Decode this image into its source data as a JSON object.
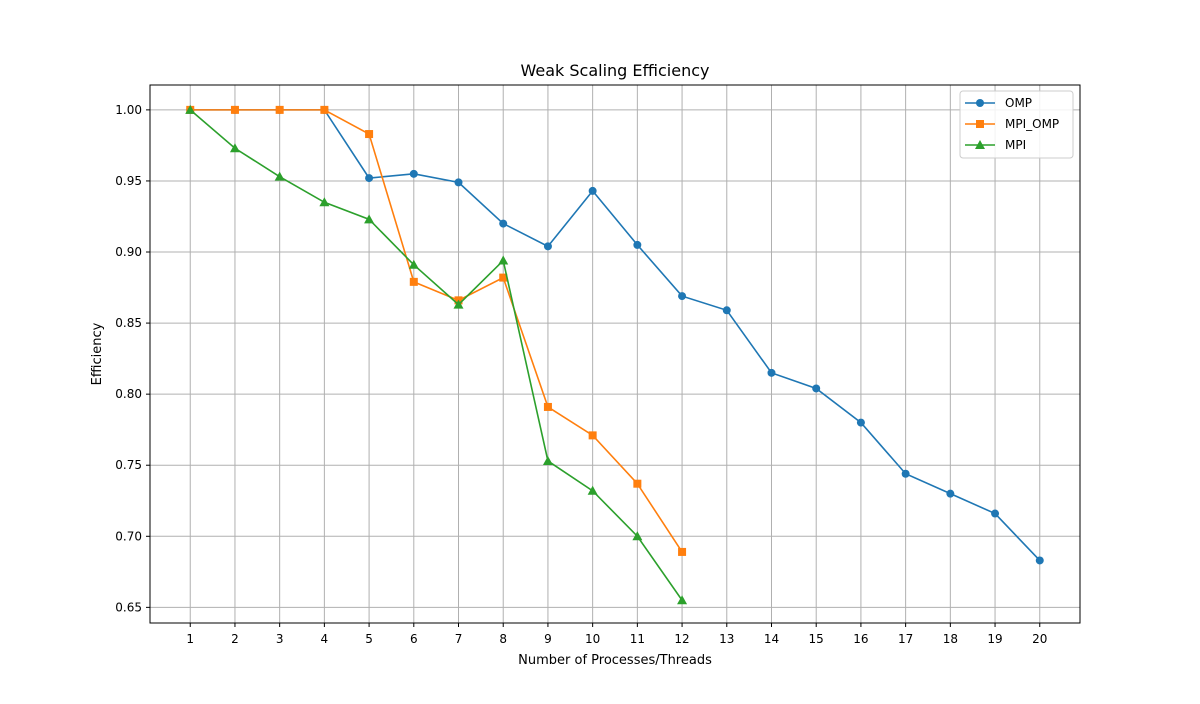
{
  "chart_data": {
    "type": "line",
    "title": "Weak Scaling Efficiency",
    "xlabel": "Number of Processes/Threads",
    "ylabel": "Efficiency",
    "xlim": [
      0.1,
      20.9
    ],
    "ylim": [
      0.639,
      1.0175
    ],
    "x_ticks": [
      1,
      2,
      3,
      4,
      5,
      6,
      7,
      8,
      9,
      10,
      11,
      12,
      13,
      14,
      15,
      16,
      17,
      18,
      19,
      20
    ],
    "y_ticks": [
      0.65,
      0.7,
      0.75,
      0.8,
      0.85,
      0.9,
      0.95,
      1.0
    ],
    "y_tick_labels": [
      "0.65",
      "0.70",
      "0.75",
      "0.80",
      "0.85",
      "0.90",
      "0.95",
      "1.00"
    ],
    "grid": true,
    "legend_position": "top-right",
    "series": [
      {
        "name": "OMP",
        "color": "#1f77b4",
        "marker": "circle",
        "x": [
          1,
          2,
          3,
          4,
          5,
          6,
          7,
          8,
          9,
          10,
          11,
          12,
          13,
          14,
          15,
          16,
          17,
          18,
          19,
          20
        ],
        "values": [
          1.0,
          1.0,
          1.0,
          1.0,
          0.952,
          0.955,
          0.949,
          0.92,
          0.904,
          0.943,
          0.905,
          0.869,
          0.859,
          0.815,
          0.804,
          0.78,
          0.744,
          0.73,
          0.716,
          0.683
        ]
      },
      {
        "name": "MPI_OMP",
        "color": "#ff7f0e",
        "marker": "square",
        "x": [
          1,
          2,
          3,
          4,
          5,
          6,
          7,
          8,
          9,
          10,
          11,
          12
        ],
        "values": [
          1.0,
          1.0,
          1.0,
          1.0,
          0.983,
          0.879,
          0.866,
          0.882,
          0.791,
          0.771,
          0.737,
          0.689
        ]
      },
      {
        "name": "MPI",
        "color": "#2ca02c",
        "marker": "triangle",
        "x": [
          1,
          2,
          3,
          4,
          5,
          6,
          7,
          8,
          9,
          10,
          11,
          12
        ],
        "values": [
          1.0,
          0.973,
          0.953,
          0.935,
          0.923,
          0.891,
          0.863,
          0.894,
          0.753,
          0.732,
          0.7,
          0.655
        ]
      }
    ]
  }
}
